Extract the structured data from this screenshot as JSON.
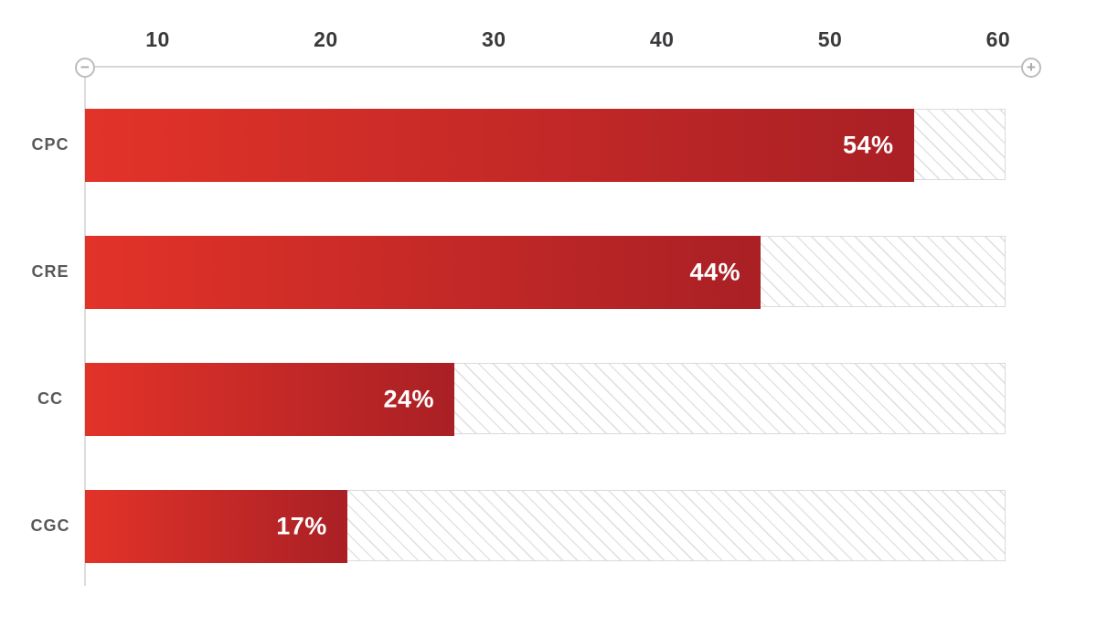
{
  "chart_data": {
    "type": "bar",
    "orientation": "horizontal",
    "title": "",
    "categories": [
      "CPC",
      "CRE",
      "CC",
      "CGC"
    ],
    "series": [
      {
        "name": "percentage",
        "values": [
          54,
          44,
          24,
          17
        ]
      }
    ],
    "value_labels": [
      "54%",
      "44%",
      "24%",
      "17%"
    ],
    "x_ticks": [
      "10",
      "20",
      "30",
      "40",
      "50",
      "60"
    ],
    "xlim": [
      0,
      60
    ],
    "grid": false,
    "legend": "none",
    "xlabel": "",
    "ylabel": "",
    "track_fill": "diagonal-hatch",
    "colors": {
      "bar_gradient_start": "#e23329",
      "bar_gradient_end": "#a92025",
      "value_label": "#ffffff",
      "category_label": "#58595b",
      "tick_label": "#3a3a3c",
      "axis_line": "#d7d7d7",
      "track_border": "#dadada",
      "hatch_line": "#e3e3e3"
    }
  },
  "controls": {
    "zoom_out_label": "−",
    "zoom_in_label": "+"
  }
}
